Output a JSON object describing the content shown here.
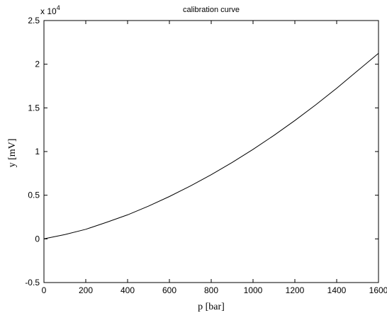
{
  "chart_data": {
    "type": "line",
    "title": "calibration curve",
    "xlabel": "p [bar]",
    "ylabel": "y [mV]",
    "xlim": [
      0,
      1600
    ],
    "ylim": [
      -5000,
      25000
    ],
    "y_exponent_label": "x 10",
    "y_exponent_power": "4",
    "x_ticks": [
      0,
      200,
      400,
      600,
      800,
      1000,
      1200,
      1400,
      1600
    ],
    "x_tick_labels": [
      "0",
      "200",
      "400",
      "600",
      "800",
      "1000",
      "1200",
      "1400",
      "1600"
    ],
    "y_ticks": [
      -5000,
      0,
      5000,
      10000,
      15000,
      20000,
      25000
    ],
    "y_tick_labels": [
      "-0.5",
      "0",
      "0.5",
      "1",
      "1.5",
      "2",
      "2.5"
    ],
    "grid": false,
    "legend": "none",
    "line_color": "#000000",
    "series": [
      {
        "x": [
          0,
          100,
          200,
          300,
          400,
          500,
          600,
          700,
          800,
          900,
          1000,
          1100,
          1200,
          1300,
          1400,
          1500,
          1600
        ],
        "y": [
          0,
          500,
          1100,
          1900,
          2750,
          3750,
          4850,
          6050,
          7350,
          8750,
          10250,
          11850,
          13550,
          15350,
          17250,
          19250,
          21250
        ]
      }
    ]
  }
}
